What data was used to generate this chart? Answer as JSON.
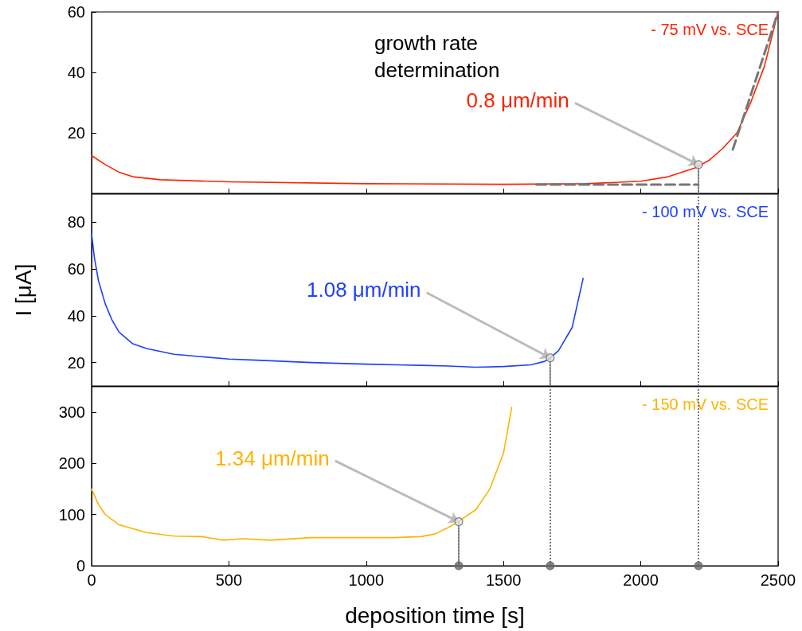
{
  "chart_data": [
    {
      "type": "line",
      "xlim": [
        0,
        2500
      ],
      "xticks": [
        0,
        500,
        1000,
        1500,
        2000,
        2500
      ],
      "ylim": [
        0,
        60
      ],
      "yticks": [
        20,
        40,
        60
      ],
      "tick_labels": "y",
      "grid": false,
      "legend": false,
      "marker": "none",
      "annotations": [
        "growth rate determination",
        {
          "text": "0.8 μm/min",
          "x": 2210,
          "y": 9.5
        }
      ],
      "series": [
        {
          "name": "- 75 mV vs. SCE",
          "color": "#ff2200",
          "x": [
            0,
            50,
            100,
            150,
            250,
            500,
            1000,
            1500,
            1800,
            2000,
            2100,
            2200,
            2250,
            2300,
            2350,
            2400,
            2450,
            2500
          ],
          "values": [
            12.5,
            9.5,
            7,
            5.5,
            4.5,
            3.8,
            3.2,
            3,
            3.2,
            4,
            5.5,
            8.5,
            11,
            15,
            20,
            30,
            42,
            60
          ]
        },
        {
          "type": "line",
          "color": "#777777",
          "line_style": "dashed",
          "x": [
            1620,
            2210
          ],
          "values": [
            2.9,
            2.9
          ]
        },
        {
          "type": "line",
          "color": "#777777",
          "line_style": "dashed",
          "x": [
            2335,
            2500
          ],
          "values": [
            14.5,
            60
          ]
        },
        {
          "type": "line",
          "color": "#777777",
          "line_style": "dotted",
          "x": [
            2210,
            2210
          ],
          "values": [
            9.5,
            0
          ]
        },
        {
          "type": "scatter",
          "color": "#e0e0e0",
          "marker": "circle",
          "x": [
            2210
          ],
          "values": [
            9.5
          ]
        }
      ]
    },
    {
      "type": "line",
      "xlim": [
        0,
        2500
      ],
      "xticks": [
        0,
        500,
        1000,
        1500,
        2000,
        2500
      ],
      "ylim": [
        10,
        92
      ],
      "yticks": [
        20,
        40,
        60,
        80
      ],
      "tick_labels": "y",
      "grid": false,
      "legend": false,
      "marker": "none",
      "ylabel": "I [μA]",
      "annotations": [
        {
          "text": "1.08 μm/min",
          "x": 1670,
          "y": 22
        }
      ],
      "ref_lines": [
        {
          "axis": "x",
          "value": 2210,
          "color": "#777777",
          "line_style": "dotted"
        }
      ],
      "series": [
        {
          "name": "- 100 mV vs. SCE",
          "color": "#1f3fff",
          "x": [
            0,
            10,
            25,
            50,
            75,
            100,
            150,
            200,
            300,
            400,
            500,
            600,
            700,
            800,
            1000,
            1200,
            1300,
            1400,
            1500,
            1600,
            1650,
            1670,
            1700,
            1750,
            1790
          ],
          "values": [
            75,
            65,
            55,
            45,
            38,
            33,
            28,
            26,
            23.5,
            22.5,
            21.5,
            21,
            20.5,
            20,
            19.3,
            18.8,
            18.5,
            18,
            18.3,
            19,
            20.5,
            22,
            25,
            35,
            56
          ]
        },
        {
          "type": "line",
          "color": "#777777",
          "line_style": "dotted",
          "x": [
            1670,
            1670
          ],
          "values": [
            22,
            10
          ]
        },
        {
          "type": "scatter",
          "color": "#e0e0e0",
          "marker": "circle",
          "x": [
            1670
          ],
          "values": [
            22
          ]
        }
      ]
    },
    {
      "type": "line",
      "xlim": [
        0,
        2500
      ],
      "xticks": [
        0,
        500,
        1000,
        1500,
        2000,
        2500
      ],
      "ylim": [
        0,
        350
      ],
      "yticks": [
        0,
        100,
        200,
        300
      ],
      "grid": false,
      "legend": false,
      "marker": "none",
      "xlabel": "deposition time [s]",
      "annotations": [
        {
          "text": "1.34 μm/min",
          "x": 1337,
          "y": 86
        }
      ],
      "ref_lines": [
        {
          "axis": "x",
          "value": 1670,
          "color": "#777777",
          "line_style": "dotted"
        },
        {
          "axis": "x",
          "value": 2210,
          "color": "#777777",
          "line_style": "dotted"
        }
      ],
      "series": [
        {
          "name": "- 150 mV vs. SCE",
          "color": "#ffb300",
          "x": [
            0,
            25,
            50,
            100,
            200,
            300,
            400,
            480,
            550,
            650,
            800,
            1000,
            1100,
            1200,
            1250,
            1300,
            1337,
            1400,
            1450,
            1500,
            1530
          ],
          "values": [
            150,
            120,
            100,
            80,
            65,
            58,
            57,
            50,
            53,
            50,
            55,
            55,
            55,
            57,
            62,
            75,
            87,
            110,
            150,
            220,
            310
          ]
        },
        {
          "type": "line",
          "color": "#777777",
          "line_style": "dotted",
          "x": [
            1337,
            1337
          ],
          "values": [
            87,
            0
          ]
        },
        {
          "type": "scatter",
          "color": "#e0e0e0",
          "marker": "circle",
          "x": [
            1337
          ],
          "values": [
            86
          ]
        },
        {
          "type": "scatter",
          "color": "#666666",
          "marker": "circle",
          "x": [
            1337,
            1670,
            2210
          ],
          "values": [
            0,
            0,
            0
          ]
        }
      ]
    }
  ]
}
